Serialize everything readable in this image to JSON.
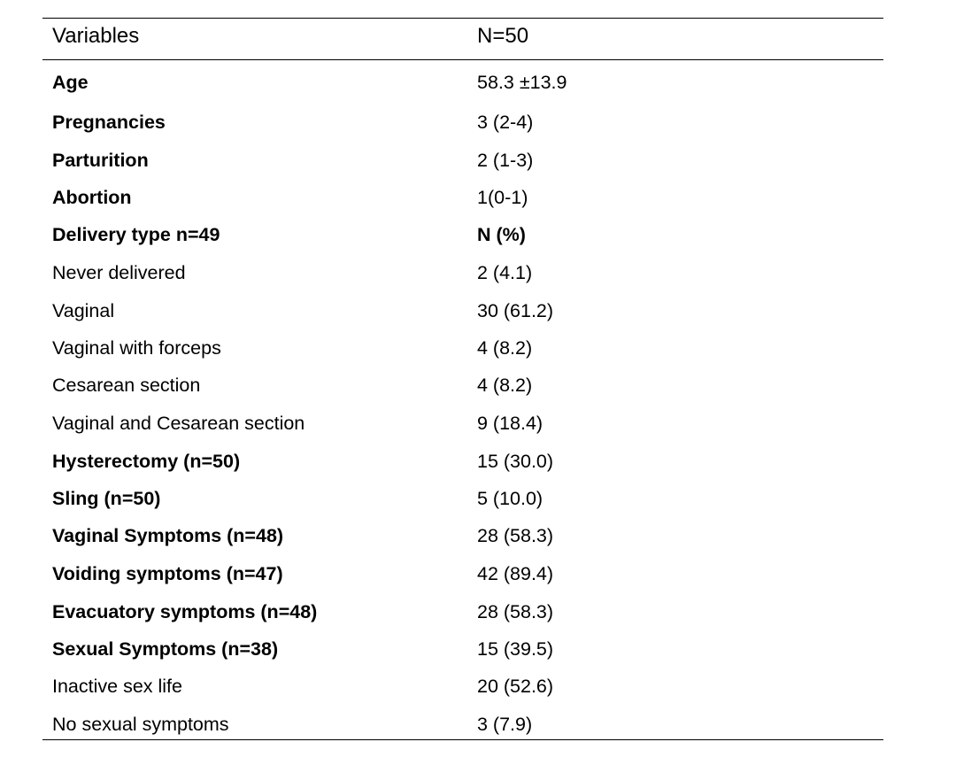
{
  "table": {
    "header": {
      "variables": "Variables",
      "n": "N=50"
    },
    "rows": [
      {
        "label": "Age",
        "value": "58.3 ±13.9",
        "label_bold": true,
        "value_bold": false
      },
      {
        "label": "Pregnancies",
        "value": "3 (2-4)",
        "label_bold": true,
        "value_bold": false
      },
      {
        "label": "Parturition",
        "value": "2 (1-3)",
        "label_bold": true,
        "value_bold": false
      },
      {
        "label": "Abortion",
        "value": "1(0-1)",
        "label_bold": true,
        "value_bold": false
      },
      {
        "label": "Delivery type n=49",
        "value": "N (%)",
        "label_bold": true,
        "value_bold": true
      },
      {
        "label": "Never delivered",
        "value": "2 (4.1)",
        "label_bold": false,
        "value_bold": false
      },
      {
        "label": "Vaginal",
        "value": "30 (61.2)",
        "label_bold": false,
        "value_bold": false
      },
      {
        "label": "Vaginal with forceps",
        "value": "4 (8.2)",
        "label_bold": false,
        "value_bold": false
      },
      {
        "label": "Cesarean section",
        "value": "4 (8.2)",
        "label_bold": false,
        "value_bold": false
      },
      {
        "label": "Vaginal and Cesarean section",
        "value": "9 (18.4)",
        "label_bold": false,
        "value_bold": false
      },
      {
        "label": "Hysterectomy (n=50)",
        "value": "15 (30.0)",
        "label_bold": true,
        "value_bold": false
      },
      {
        "label": "Sling (n=50)",
        "value": "5 (10.0)",
        "label_bold": true,
        "value_bold": false
      },
      {
        "label": "Vaginal Symptoms (n=48)",
        "value": "28 (58.3)",
        "label_bold": true,
        "value_bold": false
      },
      {
        "label": "Voiding symptoms (n=47)",
        "value": "42 (89.4)",
        "label_bold": true,
        "value_bold": false
      },
      {
        "label": "Evacuatory symptoms (n=48)",
        "value": "28 (58.3)",
        "label_bold": true,
        "value_bold": false
      },
      {
        "label": "Sexual Symptoms (n=38)",
        "value": "15 (39.5)",
        "label_bold": true,
        "value_bold": false
      },
      {
        "label": "Inactive sex life",
        "value": "20 (52.6)",
        "label_bold": false,
        "value_bold": false
      },
      {
        "label": "No sexual symptoms",
        "value": "3 (7.9)",
        "label_bold": false,
        "value_bold": false
      }
    ]
  }
}
